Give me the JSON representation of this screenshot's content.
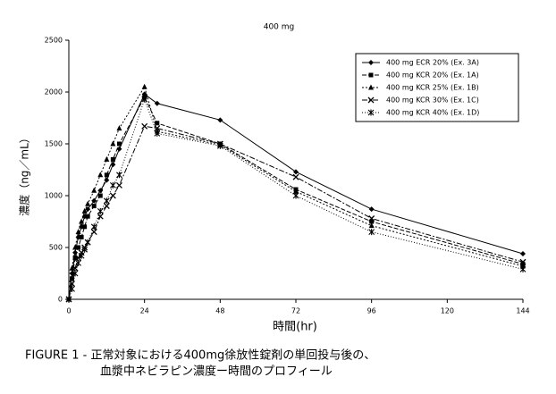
{
  "chart_data": {
    "type": "line",
    "title": "400 mg",
    "x_label": "時間(hr)",
    "y_label": "濃度（ng／mL）",
    "x": [
      0,
      1,
      2,
      3,
      4,
      5,
      6,
      8,
      10,
      12,
      14,
      16,
      24,
      28,
      48,
      72,
      96,
      144
    ],
    "series": [
      {
        "name": "400 mg ECR 20% (Ex. 3A)",
        "color": "#000000",
        "values": [
          0,
          250,
          450,
          600,
          700,
          800,
          870,
          950,
          1050,
          1150,
          1300,
          1450,
          1980,
          1890,
          1730,
          1230,
          870,
          440
        ]
      },
      {
        "name": "400 mg KCR 20% (Ex. 1A)",
        "color": "#000000",
        "values": [
          0,
          200,
          400,
          500,
          600,
          700,
          800,
          900,
          1000,
          1200,
          1350,
          1500,
          1950,
          1700,
          1500,
          1060,
          750,
          340
        ]
      },
      {
        "name": "400 mg KCR 25% (Ex. 1B)",
        "color": "#000000",
        "values": [
          0,
          300,
          500,
          650,
          750,
          850,
          920,
          1050,
          1200,
          1350,
          1500,
          1650,
          2050,
          1620,
          1490,
          1040,
          710,
          320
        ]
      },
      {
        "name": "400 mg KCR 30% (Ex. 1C)",
        "color": "#000000",
        "values": [
          0,
          150,
          300,
          400,
          450,
          500,
          550,
          650,
          800,
          900,
          1000,
          1100,
          1670,
          1650,
          1500,
          1180,
          780,
          360
        ]
      },
      {
        "name": "400 mg KCR 40% (Ex. 1D)",
        "color": "#000000",
        "values": [
          0,
          100,
          250,
          350,
          420,
          480,
          550,
          700,
          850,
          950,
          1100,
          1200,
          1930,
          1600,
          1480,
          1000,
          650,
          290
        ]
      }
    ],
    "xlim": [
      0,
      144
    ],
    "xticks": [
      0,
      24,
      48,
      72,
      96,
      120,
      144
    ],
    "ylim": [
      0,
      2500
    ],
    "yticks": [
      0,
      500,
      1000,
      1500,
      2000,
      2500
    ],
    "grid": false,
    "legend": "upper right",
    "caption": [
      "FIGURE 1 - 正常対象における400mg徐放性錠剤の単回投与後の、",
      "血漿中ネビラピン濃度ー時間のプロフィール"
    ]
  }
}
